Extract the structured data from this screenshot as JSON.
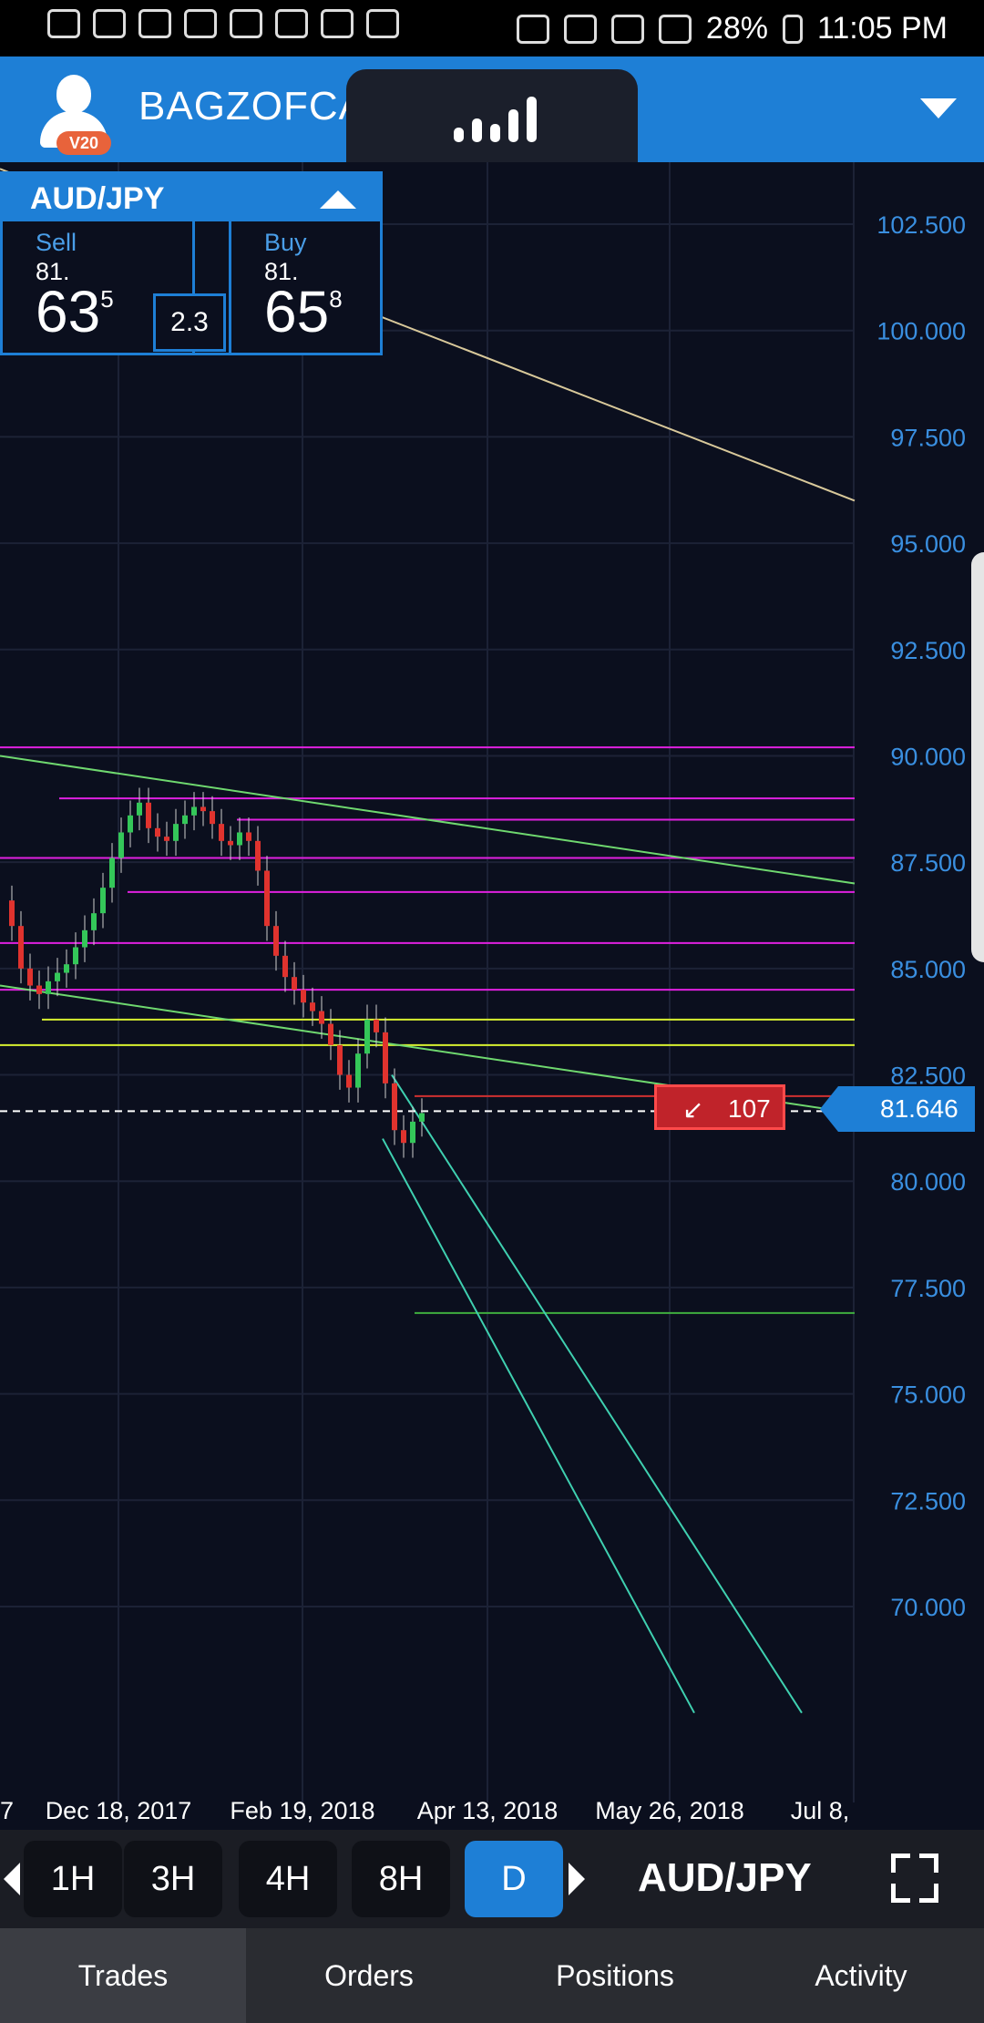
{
  "status_bar": {
    "battery": "28%",
    "time": "11:05 PM"
  },
  "header": {
    "account_badge": "V20",
    "username": "BAGZOFCA"
  },
  "ticker": {
    "pair": "AUD/JPY",
    "sell_label": "Sell",
    "sell_big": "81.",
    "sell_pips": "63",
    "sell_fraction": "5",
    "buy_label": "Buy",
    "buy_big": "81.",
    "buy_pips": "65",
    "buy_fraction": "8",
    "spread": "2.3"
  },
  "chart_data": {
    "type": "candlestick",
    "y_ticks": [
      "102.500",
      "100.000",
      "97.500",
      "95.000",
      "92.500",
      "90.000",
      "87.500",
      "85.000",
      "82.500",
      "80.000",
      "77.500",
      "75.000",
      "72.500",
      "70.000"
    ],
    "x_ticks": [
      "7",
      "Dec 18, 2017",
      "Feb 19, 2018",
      "Apr 13, 2018",
      "May 26, 2018",
      "Jul 8,"
    ],
    "ylim": [
      67.5,
      104.0
    ],
    "current_price": "81.646",
    "trade_marker": "107",
    "horizontal_levels_magenta": [
      90.2,
      89.0,
      88.5,
      87.6,
      86.8,
      85.6,
      84.5
    ],
    "horizontal_levels_yellow": [
      83.8,
      83.2
    ],
    "horizontal_level_green": 76.9,
    "colors": {
      "background": "#0b0f1e",
      "accent": "#1e7fd6",
      "up_candle": "#34c759",
      "down_candle": "#e0332e",
      "magenta_line": "#e020e0",
      "yellow_line": "#d8f030"
    }
  },
  "timeframes": [
    {
      "label": "1H",
      "active": false
    },
    {
      "label": "3H",
      "active": false
    },
    {
      "label": "4H",
      "active": false
    },
    {
      "label": "8H",
      "active": false
    },
    {
      "label": "D",
      "active": true
    }
  ],
  "toolbar_pair": "AUD/JPY",
  "bottom_nav": [
    {
      "label": "Trades",
      "active": true
    },
    {
      "label": "Orders",
      "active": false
    },
    {
      "label": "Positions",
      "active": false
    },
    {
      "label": "Activity",
      "active": false
    }
  ]
}
